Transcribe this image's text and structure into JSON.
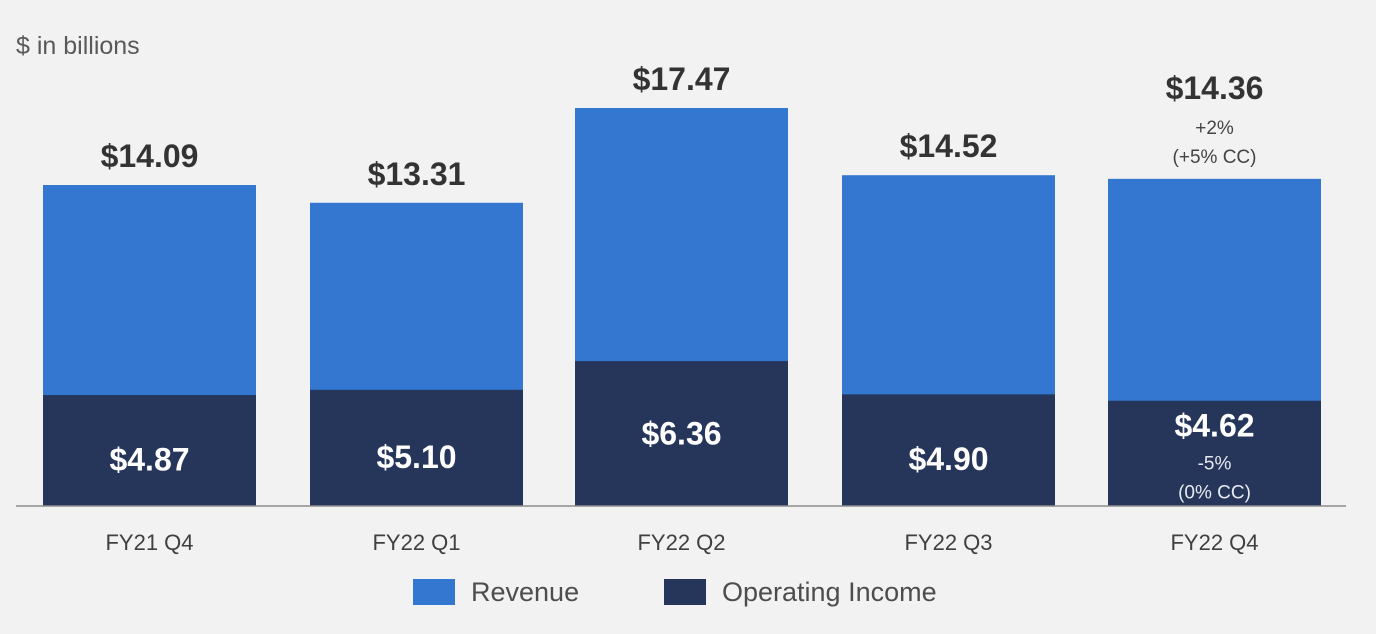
{
  "chart_data": {
    "type": "bar",
    "stacked": false,
    "overlay": true,
    "unit_note": "$ in billions",
    "categories": [
      "FY21 Q4",
      "FY22 Q1",
      "FY22 Q2",
      "FY22 Q3",
      "FY22 Q4"
    ],
    "series": [
      {
        "name": "Revenue",
        "color": "#3477d1",
        "values": [
          14.09,
          13.31,
          17.47,
          14.52,
          14.36
        ],
        "labels": [
          "$14.09",
          "$13.31",
          "$17.47",
          "$14.52",
          "$14.36"
        ]
      },
      {
        "name": "Operating Income",
        "color": "#26365a",
        "values": [
          4.87,
          5.1,
          6.36,
          4.9,
          4.62
        ],
        "labels": [
          "$4.87",
          "$5.10",
          "$6.36",
          "$4.90",
          "$4.62"
        ]
      }
    ],
    "annotations": {
      "revenue_growth": [
        "+2%",
        "(+5% CC)"
      ],
      "operating_income_growth": [
        "-5%",
        "(0% CC)"
      ]
    },
    "ylim": [
      0,
      17.47
    ],
    "grid": false,
    "legend_position": "bottom-center",
    "baseline_color": "#8c8c8c"
  }
}
